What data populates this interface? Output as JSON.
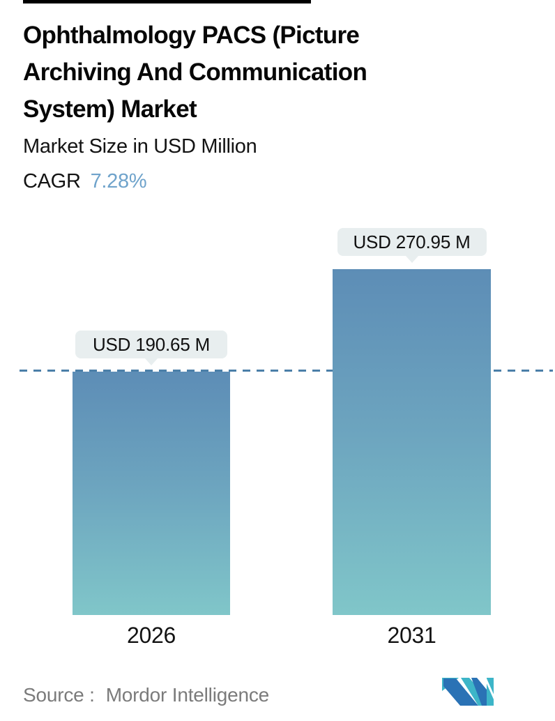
{
  "header": {
    "title_lines": [
      "Ophthalmology PACS (Picture",
      "Archiving And Communication",
      "System) Market"
    ],
    "subtitle": "Market Size in USD Million",
    "cagr_label": "CAGR",
    "cagr_value": "7.28%"
  },
  "chart_data": {
    "type": "bar",
    "title": "Ophthalmology PACS (Picture Archiving And Communication System) Market",
    "subtitle": "Market Size in USD Million",
    "cagr": "7.28%",
    "unit": "USD Million",
    "categories": [
      "2026",
      "2031"
    ],
    "values": [
      190.65,
      270.95
    ],
    "value_labels": [
      "USD 190.65 M",
      "USD 270.95 M"
    ],
    "reference_line": {
      "value": 190.65,
      "style": "dashed"
    },
    "legend": "none",
    "grid": "off",
    "colors": {
      "bar_gradient_top": "#5d8db6",
      "bar_gradient_bottom": "#80c6c9",
      "dashed_line": "#4b7fa8",
      "bubble_background": "#e8eeef",
      "cagr_accent": "#6fa3cb"
    }
  },
  "footer": {
    "source_label": "Source :",
    "source_value": "Mordor Intelligence",
    "logo_name": "mordor-intelligence-logo"
  }
}
